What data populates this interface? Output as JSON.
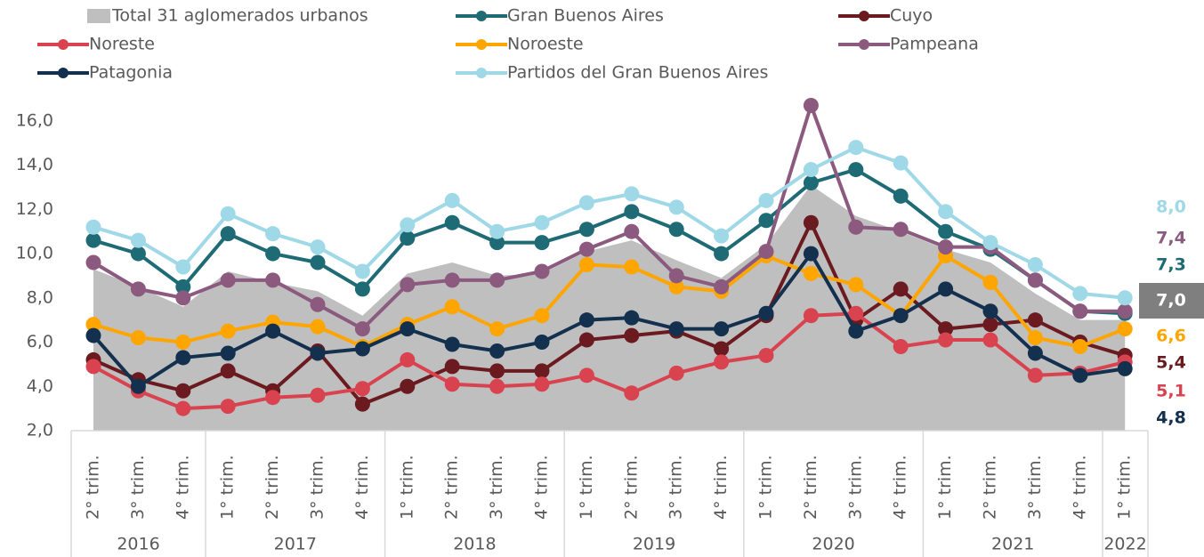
{
  "chart_data": {
    "type": "line",
    "categories": [
      "2° trim.",
      "3° trim.",
      "4° trim.",
      "1° trim.",
      "2° trim.",
      "3° trim.",
      "4° trim.",
      "1° trim.",
      "2° trim.",
      "3° trim.",
      "4° trim.",
      "1° trim.",
      "2° trim.",
      "3° trim.",
      "4° trim.",
      "1° trim.",
      "2° trim.",
      "3° trim.",
      "4° trim.",
      "1° trim.",
      "2° trim.",
      "3° trim.",
      "4° trim.",
      "1° trim."
    ],
    "groups": [
      {
        "label": "2016",
        "size": 3
      },
      {
        "label": "2017",
        "size": 4
      },
      {
        "label": "2018",
        "size": 4
      },
      {
        "label": "2019",
        "size": 4
      },
      {
        "label": "2020",
        "size": 4
      },
      {
        "label": "2021",
        "size": 4
      },
      {
        "label": "2022",
        "size": 1
      }
    ],
    "ylim": [
      2,
      17
    ],
    "yticks": [
      {
        "value": 2,
        "label": "2,0"
      },
      {
        "value": 4,
        "label": "4,0"
      },
      {
        "value": 6,
        "label": "6,0"
      },
      {
        "value": 8,
        "label": "8,0"
      },
      {
        "value": 10,
        "label": "10,0"
      },
      {
        "value": 12,
        "label": "12,0"
      },
      {
        "value": 14,
        "label": "14,0"
      },
      {
        "value": 16,
        "label": "16,0"
      }
    ],
    "series": [
      {
        "name": "Total 31 aglomerados urbanos",
        "type": "area",
        "color": "#bfbfbf",
        "values": [
          9.3,
          8.5,
          7.6,
          9.2,
          8.7,
          8.3,
          7.2,
          9.1,
          9.6,
          9.0,
          9.1,
          10.1,
          10.6,
          9.7,
          8.9,
          10.4,
          13.1,
          11.7,
          11.0,
          10.2,
          9.6,
          8.2,
          7.0,
          7.0
        ],
        "value_labels": [
          null,
          null,
          null,
          null,
          null,
          null,
          null,
          null,
          null,
          null,
          null,
          null,
          null,
          null,
          null,
          null,
          null,
          null,
          null,
          null,
          null,
          null,
          null,
          "7,0"
        ]
      },
      {
        "name": "Gran Buenos Aires",
        "color": "#1f6b75",
        "values": [
          10.6,
          10.0,
          8.5,
          10.9,
          10.0,
          9.6,
          8.4,
          10.7,
          11.4,
          10.5,
          10.5,
          11.1,
          11.9,
          11.1,
          10.0,
          11.5,
          13.2,
          13.8,
          12.6,
          11.0,
          10.2,
          8.8,
          7.4,
          7.3
        ],
        "value_labels": [
          null,
          null,
          null,
          null,
          null,
          null,
          null,
          null,
          null,
          null,
          null,
          null,
          null,
          null,
          null,
          null,
          null,
          null,
          null,
          null,
          null,
          null,
          null,
          "7,3"
        ]
      },
      {
        "name": "Cuyo",
        "color": "#6b1a1f",
        "values": [
          5.2,
          4.3,
          3.8,
          4.7,
          3.8,
          5.6,
          3.2,
          4.0,
          4.9,
          4.7,
          4.7,
          6.1,
          6.3,
          6.5,
          5.7,
          7.2,
          11.4,
          7.0,
          8.4,
          6.6,
          6.8,
          7.0,
          6.0,
          5.4
        ],
        "value_labels": [
          null,
          null,
          null,
          null,
          null,
          null,
          null,
          null,
          null,
          null,
          null,
          null,
          null,
          null,
          null,
          null,
          null,
          null,
          null,
          null,
          null,
          null,
          null,
          "5,4"
        ]
      },
      {
        "name": "Noreste",
        "color": "#d9434f",
        "values": [
          4.9,
          3.8,
          3.0,
          3.1,
          3.5,
          3.6,
          3.9,
          5.2,
          4.1,
          4.0,
          4.1,
          4.5,
          3.7,
          4.6,
          5.1,
          5.4,
          7.2,
          7.3,
          5.8,
          6.1,
          6.1,
          4.5,
          4.6,
          5.1
        ],
        "value_labels": [
          null,
          null,
          null,
          null,
          null,
          null,
          null,
          null,
          null,
          null,
          null,
          null,
          null,
          null,
          null,
          null,
          null,
          null,
          null,
          null,
          null,
          null,
          null,
          "5,1"
        ]
      },
      {
        "name": "Noroeste",
        "color": "#ffa500",
        "values": [
          6.8,
          6.2,
          6.0,
          6.5,
          6.9,
          6.7,
          5.8,
          6.8,
          7.6,
          6.6,
          7.2,
          9.5,
          9.4,
          8.5,
          8.3,
          9.9,
          9.1,
          8.6,
          7.2,
          9.9,
          8.7,
          6.2,
          5.8,
          6.6
        ],
        "value_labels": [
          null,
          null,
          null,
          null,
          null,
          null,
          null,
          null,
          null,
          null,
          null,
          null,
          null,
          null,
          null,
          null,
          null,
          null,
          null,
          null,
          null,
          null,
          null,
          "6,6"
        ]
      },
      {
        "name": "Pampeana",
        "color": "#8c5a7f",
        "values": [
          9.6,
          8.4,
          8.0,
          8.8,
          8.8,
          7.7,
          6.6,
          8.6,
          8.8,
          8.8,
          9.2,
          10.2,
          11.0,
          9.0,
          8.5,
          10.1,
          16.7,
          11.2,
          11.1,
          10.3,
          10.3,
          8.8,
          7.4,
          7.4
        ],
        "value_labels": [
          null,
          null,
          null,
          null,
          null,
          null,
          null,
          null,
          null,
          null,
          null,
          null,
          null,
          null,
          null,
          null,
          null,
          null,
          null,
          null,
          null,
          null,
          null,
          "7,4"
        ]
      },
      {
        "name": "Patagonia",
        "color": "#14304f",
        "values": [
          6.3,
          4.0,
          5.3,
          5.5,
          6.5,
          5.5,
          5.7,
          6.6,
          5.9,
          5.6,
          6.0,
          7.0,
          7.1,
          6.6,
          6.6,
          7.3,
          10.0,
          6.5,
          7.2,
          8.4,
          7.4,
          5.5,
          4.5,
          4.8
        ],
        "value_labels": [
          null,
          null,
          null,
          null,
          null,
          null,
          null,
          null,
          null,
          null,
          null,
          null,
          null,
          null,
          null,
          null,
          null,
          null,
          null,
          null,
          null,
          null,
          null,
          "4,8"
        ]
      },
      {
        "name": "Partidos del Gran Buenos Aires",
        "color": "#9fd8e6",
        "values": [
          11.2,
          10.6,
          9.4,
          11.8,
          10.9,
          10.3,
          9.2,
          11.3,
          12.4,
          11.0,
          11.4,
          12.3,
          12.7,
          12.1,
          10.8,
          12.4,
          13.8,
          14.8,
          14.1,
          11.9,
          10.5,
          9.5,
          8.2,
          8.0
        ],
        "value_labels": [
          null,
          null,
          null,
          null,
          null,
          null,
          null,
          null,
          null,
          null,
          null,
          null,
          null,
          null,
          null,
          null,
          null,
          null,
          null,
          null,
          null,
          null,
          null,
          "8,0"
        ]
      }
    ]
  }
}
